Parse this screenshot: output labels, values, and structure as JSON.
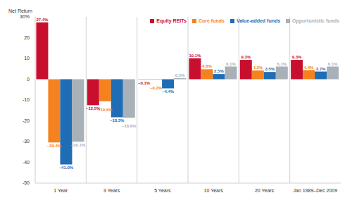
{
  "chart_data": {
    "type": "bar",
    "y_label": "Net Return",
    "categories": [
      "1 Year",
      "3 Years",
      "5 Years",
      "10 Years",
      "20 Years",
      "Jan 1989–Dec 2009"
    ],
    "series": [
      {
        "name": "Equity REITs",
        "color": "#c8102e",
        "values": [
          27.4,
          -12.5,
          -0.1,
          10.1,
          9.3,
          9.3
        ],
        "value_labels": [
          "27.4%",
          "–12.5%",
          "–0.1%",
          "10.1%",
          "9.3%",
          "9.3%"
        ]
      },
      {
        "name": "Core funds",
        "color": "#f5821f",
        "values": [
          -30.4,
          -10.6,
          -0.2,
          4.8,
          4.2,
          4.4
        ],
        "value_labels": [
          "–30.4%",
          "–10.6%",
          "–0.2%",
          "4.8%",
          "4.2%",
          "4.4%"
        ]
      },
      {
        "name": "Value-added funds",
        "color": "#1f6db5",
        "values": [
          -41.0,
          -18.3,
          -4.4,
          2.5,
          3.5,
          3.7
        ],
        "value_labels": [
          "–41.0%",
          "–18.3%",
          "–4.4%",
          "2.5%",
          "3.5%",
          "3.7%"
        ]
      },
      {
        "name": "Opportunistic funds",
        "color": "#a7b1b7",
        "values": [
          -30.1,
          -18.6,
          0.5,
          6.1,
          6.1,
          6.1
        ],
        "value_labels": [
          "–30.1%",
          "–18.6%",
          "0.5%",
          "6.1%",
          "6.1%",
          "6.1%"
        ]
      }
    ],
    "ylim": [
      -50,
      30
    ],
    "yticks": [
      -50,
      -40,
      -30,
      -20,
      -10,
      0,
      10,
      20,
      {
        "value": 30,
        "label": "30%"
      }
    ],
    "data_labels": true,
    "legend": "top right"
  }
}
